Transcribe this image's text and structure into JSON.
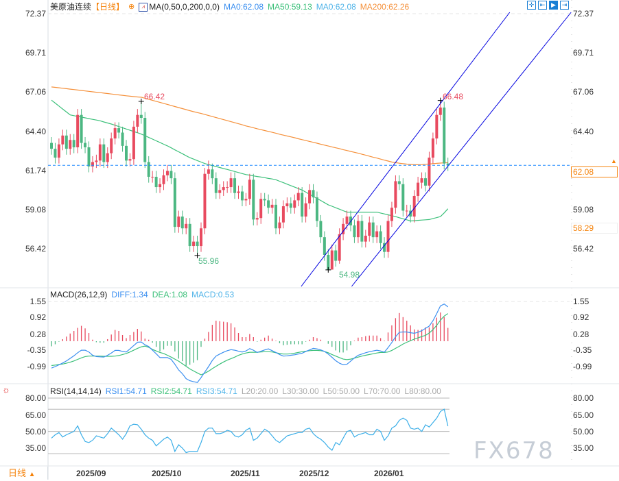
{
  "header": {
    "symbol": "美原油连续",
    "period": "【日线】",
    "ma_label": "MA(0,50,0,200,0,0)",
    "ma_values": [
      {
        "label": "MA0:62.08",
        "color": "#3b8ff0"
      },
      {
        "label": "MA50:59.13",
        "color": "#3cc07a"
      },
      {
        "label": "MA0:62.08",
        "color": "#4fb3e8"
      },
      {
        "label": "MA200:62.26",
        "color": "#f5903a"
      }
    ],
    "toolbar_icons": [
      "crosshair-icon",
      "zoom-range-icon",
      "play-forward-icon",
      "go-to-end-icon"
    ]
  },
  "price_axis": {
    "ticks": [
      "72.37",
      "69.71",
      "67.06",
      "64.40",
      "61.74",
      "59.08",
      "56.42"
    ],
    "last_price": "62.08",
    "ma_price": "58.29"
  },
  "annotations": {
    "high1": "66.42",
    "low1": "55.96",
    "low2": "54.98",
    "high2": "66.48"
  },
  "macd": {
    "title": "MACD(26,12,9)",
    "diff_label": "DIFF:1.34",
    "dea_label": "DEA:1.08",
    "macd_label": "MACD:0.53",
    "ticks": [
      "1.55",
      "0.92",
      "0.28",
      "-0.35",
      "-0.99"
    ]
  },
  "rsi": {
    "title": "RSI(14,14,14)",
    "labels": [
      {
        "text": "RSI1:54.71",
        "color": "#3b8ff0"
      },
      {
        "text": "RSI2:54.71",
        "color": "#3cc07a"
      },
      {
        "text": "RSI3:54.71",
        "color": "#4fb3e8"
      },
      {
        "text": "L20:20.00",
        "color": "#aaaaaa"
      },
      {
        "text": "L30:30.00",
        "color": "#aaaaaa"
      },
      {
        "text": "L50:50.00",
        "color": "#aaaaaa"
      },
      {
        "text": "L70:70.00",
        "color": "#aaaaaa"
      },
      {
        "text": "L80:80.00",
        "color": "#aaaaaa"
      }
    ],
    "ticks": [
      "80.00",
      "65.00",
      "50.00",
      "35.00"
    ]
  },
  "dates": [
    "2025/09",
    "2025/10",
    "2025/11",
    "2025/12",
    "2026/01"
  ],
  "period_button": "日线",
  "watermark": "FX678",
  "colors": {
    "up": "#e84a5f",
    "down": "#4cb782",
    "ma50": "#3cc07a",
    "ma200": "#f5903a",
    "channel": "#0000e0",
    "diff": "#3b8ff0",
    "dea": "#3cc07a",
    "rsi": "#3aaee8",
    "accent": "#f5820a"
  },
  "chart_data": [
    {
      "type": "candlestick",
      "title": "美原油连续",
      "ylim": [
        54.5,
        73.3
      ],
      "open": [
        63.6,
        63.2,
        62.6,
        63.5,
        64.1,
        63.2,
        63.8,
        63.3,
        65.5,
        63.6,
        63.3,
        62.0,
        62.3,
        62.4,
        63.5,
        62.3,
        62.9,
        63.9,
        64.6,
        64.3,
        63.4,
        62.4,
        62.5,
        64.7,
        65.5,
        65.3,
        62.3,
        61.3,
        61.3,
        60.6,
        60.8,
        61.4,
        61.7,
        61.2,
        57.9,
        58.6,
        57.8,
        58.1,
        56.6,
        56.9,
        56.6,
        57.8,
        61.5,
        61.8,
        61.2,
        60.2,
        60.4,
        60.6,
        60.6,
        61.2,
        60.2,
        60.3,
        59.7,
        59.8,
        61.1,
        58.4,
        58.5,
        59.8,
        59.7,
        59.2,
        59.4,
        57.8,
        58.2,
        59.3,
        59.5,
        59.2,
        59.7,
        60.2,
        58.6,
        59.5,
        60.4,
        59.9,
        58.3,
        57.2,
        56.0,
        55.0,
        56.3,
        55.6,
        57.4,
        58.1,
        58.6,
        58.0,
        57.2,
        58.3,
        56.9,
        57.3,
        58.2,
        57.2,
        57.6,
        56.8,
        56.2,
        58.3,
        59.2,
        61.0,
        60.8,
        59.0,
        59.0,
        58.6,
        60.0,
        60.9,
        61.2,
        60.7,
        62.6,
        63.9,
        65.5,
        66.0,
        62.2
      ],
      "high": [
        64.0,
        63.6,
        63.9,
        64.5,
        64.5,
        64.2,
        64.2,
        65.9,
        65.9,
        64.0,
        63.7,
        62.7,
        62.8,
        63.9,
        63.9,
        63.3,
        64.3,
        65.0,
        65.0,
        64.7,
        63.8,
        62.9,
        65.1,
        65.9,
        66.42,
        65.7,
        62.7,
        61.7,
        61.7,
        61.2,
        61.8,
        62.1,
        62.1,
        61.6,
        59.0,
        59.0,
        58.5,
        58.5,
        57.3,
        57.3,
        58.2,
        61.9,
        62.4,
        62.2,
        61.6,
        60.8,
        61.0,
        61.0,
        61.6,
        61.6,
        60.7,
        60.7,
        60.2,
        61.5,
        61.5,
        58.9,
        60.2,
        60.2,
        60.1,
        59.8,
        59.8,
        58.6,
        59.7,
        59.9,
        59.9,
        60.1,
        60.6,
        60.6,
        59.9,
        60.8,
        60.8,
        60.3,
        58.7,
        57.6,
        56.4,
        56.7,
        56.7,
        57.8,
        58.5,
        59.0,
        59.0,
        58.4,
        58.7,
        58.7,
        57.7,
        58.6,
        58.6,
        58.0,
        58.0,
        57.2,
        58.7,
        59.6,
        61.4,
        61.4,
        61.2,
        59.4,
        59.4,
        60.4,
        61.3,
        61.6,
        61.6,
        63.0,
        64.3,
        65.9,
        66.48,
        66.4,
        62.6
      ],
      "low": [
        62.8,
        62.2,
        62.2,
        63.1,
        62.8,
        62.8,
        62.9,
        62.9,
        63.2,
        62.9,
        61.6,
        61.6,
        61.9,
        62.0,
        61.9,
        61.9,
        62.5,
        63.5,
        63.9,
        63.0,
        62.0,
        62.0,
        62.1,
        64.3,
        64.9,
        61.9,
        60.9,
        60.9,
        60.2,
        60.2,
        60.4,
        61.0,
        60.8,
        57.5,
        57.5,
        57.4,
        57.4,
        56.2,
        56.2,
        55.96,
        56.2,
        57.4,
        61.1,
        60.8,
        59.8,
        59.8,
        60.0,
        60.2,
        60.2,
        59.8,
        59.8,
        59.3,
        59.3,
        59.4,
        58.0,
        58.0,
        58.1,
        59.3,
        58.8,
        58.8,
        57.4,
        57.4,
        57.8,
        58.9,
        58.8,
        58.8,
        59.3,
        58.2,
        58.2,
        59.1,
        59.5,
        57.9,
        56.8,
        55.6,
        54.98,
        55.0,
        55.2,
        55.4,
        57.0,
        57.7,
        57.6,
        56.8,
        56.8,
        56.5,
        56.5,
        56.9,
        56.8,
        56.8,
        56.4,
        55.8,
        55.8,
        57.9,
        58.8,
        60.4,
        58.6,
        58.6,
        58.2,
        58.2,
        59.6,
        60.5,
        60.3,
        60.3,
        62.2,
        63.5,
        65.1,
        61.8,
        61.7
      ],
      "close": [
        63.2,
        62.6,
        63.5,
        64.1,
        63.2,
        63.8,
        63.3,
        65.5,
        63.6,
        63.3,
        62.0,
        62.3,
        62.4,
        63.5,
        62.3,
        62.9,
        63.9,
        64.6,
        64.3,
        63.4,
        62.4,
        62.5,
        64.7,
        65.5,
        65.3,
        62.3,
        61.3,
        61.3,
        60.6,
        60.8,
        61.4,
        61.7,
        61.2,
        57.9,
        58.6,
        57.8,
        58.1,
        56.6,
        56.9,
        56.6,
        57.8,
        61.5,
        61.8,
        61.2,
        60.2,
        60.4,
        60.6,
        60.6,
        61.2,
        60.2,
        60.3,
        59.7,
        59.8,
        61.1,
        58.4,
        58.5,
        59.8,
        59.7,
        59.2,
        59.4,
        57.8,
        58.2,
        59.3,
        59.5,
        59.2,
        59.7,
        60.2,
        58.6,
        59.5,
        60.4,
        59.9,
        58.3,
        57.2,
        56.0,
        55.0,
        56.3,
        55.6,
        57.4,
        58.1,
        58.6,
        58.0,
        57.2,
        58.3,
        56.9,
        57.3,
        58.2,
        57.2,
        57.6,
        56.8,
        56.2,
        58.3,
        59.2,
        61.0,
        60.8,
        59.0,
        59.0,
        58.6,
        60.0,
        60.9,
        61.2,
        60.7,
        62.6,
        63.9,
        65.5,
        66.0,
        62.2,
        62.08
      ],
      "ma50": [
        66.5,
        66.3,
        66.1,
        65.9,
        65.7,
        65.5,
        65.45,
        65.4,
        65.35,
        65.3,
        65.25,
        65.2,
        65.15,
        65.1,
        65.02,
        64.95,
        64.88,
        64.8,
        64.71,
        64.63,
        64.54,
        64.46,
        64.37,
        64.29,
        64.2,
        64.09,
        63.97,
        63.86,
        63.74,
        63.63,
        63.51,
        63.4,
        63.27,
        63.13,
        63.0,
        62.87,
        62.73,
        62.6,
        62.5,
        62.4,
        62.3,
        62.2,
        62.13,
        62.06,
        62.0,
        61.93,
        61.86,
        61.8,
        61.73,
        61.66,
        61.59,
        61.52,
        61.45,
        61.41,
        61.36,
        61.32,
        61.28,
        61.24,
        61.19,
        61.15,
        61.1,
        61.0,
        60.9,
        60.8,
        60.7,
        60.6,
        60.5,
        60.4,
        60.26,
        60.11,
        59.97,
        59.83,
        59.69,
        59.54,
        59.4,
        59.3,
        59.2,
        59.1,
        59.0,
        58.9,
        58.9,
        58.9,
        58.9,
        58.9,
        58.9,
        58.9,
        58.9,
        58.9,
        58.84,
        58.78,
        58.72,
        58.66,
        58.6,
        58.52,
        58.45,
        58.38,
        58.3,
        58.32,
        58.34,
        58.36,
        58.38,
        58.4,
        58.47,
        58.53,
        58.6,
        58.85,
        59.13
      ],
      "ma200": [
        67.4,
        67.37,
        67.34,
        67.31,
        67.28,
        67.25,
        67.22,
        67.19,
        67.16,
        67.13,
        67.1,
        67.07,
        67.04,
        67.01,
        66.98,
        66.95,
        66.92,
        66.89,
        66.86,
        66.83,
        66.8,
        66.77,
        66.74,
        66.72,
        66.7,
        66.63,
        66.56,
        66.49,
        66.42,
        66.35,
        66.28,
        66.21,
        66.14,
        66.07,
        66.0,
        65.93,
        65.86,
        65.79,
        65.72,
        65.66,
        65.6,
        65.53,
        65.46,
        65.39,
        65.32,
        65.25,
        65.18,
        65.11,
        65.04,
        64.97,
        64.9,
        64.83,
        64.75,
        64.69,
        64.63,
        64.56,
        64.5,
        64.44,
        64.38,
        64.32,
        64.26,
        64.19,
        64.13,
        64.07,
        64.01,
        63.95,
        63.88,
        63.82,
        63.76,
        63.7,
        63.64,
        63.58,
        63.51,
        63.45,
        63.39,
        63.33,
        63.27,
        63.21,
        63.14,
        63.08,
        63.02,
        62.96,
        62.9,
        62.83,
        62.77,
        62.7,
        62.63,
        62.57,
        62.5,
        62.43,
        62.37,
        62.3,
        62.26,
        62.22,
        62.19,
        62.16,
        62.14,
        62.12,
        62.12,
        62.13,
        62.15,
        62.17,
        62.19,
        62.21,
        62.23,
        62.25,
        62.26
      ],
      "channel": {
        "upper": [
          {
            "candle": 74,
            "price": 56.27
          },
          {
            "candle": 104,
            "price": 66.28
          }
        ],
        "lower": [
          {
            "candle": 89,
            "price": 56.63
          },
          {
            "candle": 106,
            "price": 62.02
          }
        ]
      },
      "current_price_line": 62.08
    },
    {
      "type": "macd",
      "title": "MACD(26,12,9)",
      "ylim": [
        -1.7,
        1.75
      ],
      "diff": [
        -1.05,
        -0.99,
        -0.92,
        -0.85,
        -0.77,
        -0.67,
        -0.57,
        -0.45,
        -0.35,
        -0.35,
        -0.42,
        -0.55,
        -0.6,
        -0.61,
        -0.62,
        -0.55,
        -0.46,
        -0.36,
        -0.36,
        -0.4,
        -0.42,
        -0.3,
        -0.17,
        -0.04,
        -0.03,
        -0.14,
        -0.21,
        -0.35,
        -0.49,
        -0.64,
        -0.64,
        -0.64,
        -0.71,
        -0.9,
        -1.12,
        -1.27,
        -1.46,
        -1.54,
        -1.58,
        -1.61,
        -1.42,
        -1.2,
        -0.99,
        -0.75,
        -0.58,
        -0.5,
        -0.43,
        -0.37,
        -0.33,
        -0.35,
        -0.39,
        -0.42,
        -0.38,
        -0.29,
        -0.35,
        -0.44,
        -0.39,
        -0.34,
        -0.3,
        -0.37,
        -0.44,
        -0.52,
        -0.58,
        -0.57,
        -0.55,
        -0.53,
        -0.5,
        -0.47,
        -0.4,
        -0.34,
        -0.28,
        -0.3,
        -0.34,
        -0.4,
        -0.5,
        -0.63,
        -0.76,
        -0.86,
        -0.92,
        -0.9,
        -0.78,
        -0.65,
        -0.55,
        -0.5,
        -0.45,
        -0.41,
        -0.38,
        -0.35,
        -0.38,
        -0.43,
        -0.25,
        -0.05,
        0.17,
        0.35,
        0.36,
        0.36,
        0.33,
        0.31,
        0.35,
        0.41,
        0.5,
        0.59,
        0.8,
        1.08,
        1.38,
        1.45,
        1.34
      ],
      "dea": [
        -0.95,
        -0.93,
        -0.91,
        -0.89,
        -0.86,
        -0.82,
        -0.77,
        -0.71,
        -0.65,
        -0.6,
        -0.58,
        -0.58,
        -0.58,
        -0.58,
        -0.59,
        -0.59,
        -0.59,
        -0.58,
        -0.56,
        -0.52,
        -0.48,
        -0.42,
        -0.35,
        -0.28,
        -0.22,
        -0.19,
        -0.24,
        -0.32,
        -0.38,
        -0.44,
        -0.48,
        -0.55,
        -0.62,
        -0.7,
        -0.78,
        -0.88,
        -0.98,
        -1.08,
        -1.16,
        -1.24,
        -1.31,
        -1.25,
        -1.17,
        -1.07,
        -0.98,
        -0.89,
        -0.81,
        -0.74,
        -0.68,
        -0.62,
        -0.55,
        -0.5,
        -0.46,
        -0.43,
        -0.43,
        -0.43,
        -0.42,
        -0.41,
        -0.41,
        -0.42,
        -0.45,
        -0.48,
        -0.5,
        -0.5,
        -0.49,
        -0.47,
        -0.44,
        -0.41,
        -0.39,
        -0.37,
        -0.36,
        -0.36,
        -0.37,
        -0.4,
        -0.45,
        -0.52,
        -0.58,
        -0.64,
        -0.7,
        -0.72,
        -0.7,
        -0.66,
        -0.62,
        -0.58,
        -0.55,
        -0.52,
        -0.49,
        -0.46,
        -0.44,
        -0.44,
        -0.42,
        -0.36,
        -0.28,
        -0.2,
        -0.11,
        -0.04,
        0.02,
        0.08,
        0.13,
        0.18,
        0.23,
        0.32,
        0.45,
        0.62,
        0.82,
        0.98,
        1.08
      ],
      "histogram": [
        -0.2,
        -0.12,
        -0.02,
        0.08,
        0.18,
        0.3,
        0.4,
        0.52,
        0.6,
        0.5,
        0.32,
        0.06,
        -0.04,
        -0.06,
        -0.06,
        0.08,
        0.26,
        0.44,
        0.4,
        0.24,
        0.12,
        0.24,
        0.36,
        0.48,
        0.38,
        0.1,
        0.06,
        -0.06,
        -0.22,
        -0.4,
        -0.32,
        -0.18,
        -0.18,
        -0.4,
        -0.68,
        -0.78,
        -0.96,
        -0.92,
        -0.84,
        -0.74,
        -0.22,
        0.1,
        0.36,
        0.64,
        0.8,
        0.78,
        0.76,
        0.74,
        0.7,
        0.54,
        0.32,
        0.16,
        0.16,
        0.28,
        0.16,
        -0.02,
        0.06,
        0.14,
        0.22,
        0.1,
        0.02,
        -0.08,
        -0.16,
        -0.14,
        -0.12,
        -0.12,
        -0.12,
        -0.12,
        -0.02,
        0.06,
        0.16,
        0.12,
        0.06,
        0.0,
        -0.1,
        -0.22,
        -0.36,
        -0.44,
        -0.44,
        -0.36,
        -0.16,
        0.02,
        0.14,
        0.16,
        0.2,
        0.22,
        0.22,
        0.22,
        0.12,
        0.02,
        0.34,
        0.62,
        0.9,
        1.1,
        0.94,
        0.8,
        0.62,
        0.46,
        0.44,
        0.46,
        0.54,
        0.54,
        0.7,
        0.92,
        1.12,
        0.94,
        0.52
      ]
    },
    {
      "type": "line",
      "title": "RSI(14,14,14)",
      "ylim": [
        20,
        80
      ],
      "levels": [
        80,
        70,
        50,
        30
      ],
      "rsi": [
        44,
        47,
        49,
        45,
        47,
        48.5,
        50,
        55,
        47,
        41,
        40,
        42,
        46,
        45,
        44,
        48,
        53,
        50,
        47,
        43,
        48,
        55,
        56.5,
        56,
        52,
        47,
        44,
        42,
        37,
        40,
        43,
        45,
        42,
        32,
        38,
        35,
        31,
        32,
        32,
        32,
        40,
        50,
        53,
        53,
        48,
        48,
        49,
        51,
        50,
        46,
        45,
        47,
        51,
        53,
        42,
        44,
        48,
        52,
        50,
        46,
        42,
        40,
        43,
        46,
        47,
        48,
        49,
        49,
        52,
        53,
        48,
        45,
        43,
        40,
        36,
        33,
        40,
        38,
        44,
        50,
        51,
        45,
        47,
        48,
        49,
        47,
        47,
        52,
        50,
        42,
        46,
        53,
        55,
        60,
        62,
        60,
        53,
        52,
        53,
        50,
        56,
        54,
        58,
        62,
        68,
        70,
        54.71
      ]
    }
  ]
}
